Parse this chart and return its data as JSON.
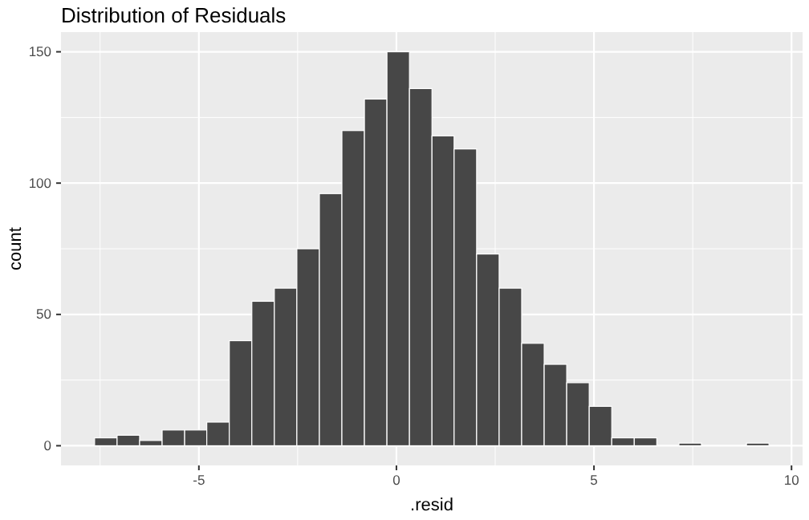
{
  "chart_data": {
    "type": "histogram",
    "title": "Distribution of Residuals",
    "xlabel": ".resid",
    "ylabel": "count",
    "bins": [
      -7.64,
      -7.07,
      -6.5,
      -5.93,
      -5.36,
      -4.8,
      -4.23,
      -3.66,
      -3.09,
      -2.52,
      -1.95,
      -1.38,
      -0.81,
      -0.24,
      0.33,
      0.9,
      1.46,
      2.03,
      2.6,
      3.17,
      3.74,
      4.31,
      4.88,
      5.45,
      6.02,
      6.59,
      7.15,
      7.72,
      8.29,
      8.86,
      9.43
    ],
    "values": [
      3,
      4,
      2,
      6,
      6,
      9,
      40,
      55,
      60,
      75,
      96,
      120,
      132,
      150,
      136,
      118,
      113,
      73,
      60,
      39,
      31,
      24,
      15,
      3,
      3,
      0,
      1,
      0,
      0,
      1
    ],
    "color": "#474747",
    "xlim": [
      -8.49,
      10.28
    ],
    "xticks": [
      -5,
      0,
      5,
      10
    ],
    "ylim": [
      -7.5,
      157.5
    ],
    "yticks": [
      0,
      50,
      100,
      150
    ],
    "grid": true
  }
}
